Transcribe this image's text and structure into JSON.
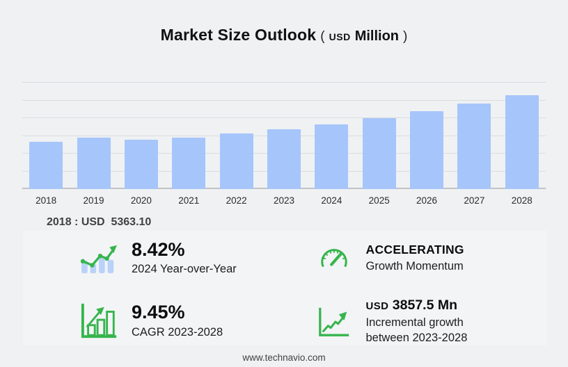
{
  "colors": {
    "page_bg": "#eff1f3",
    "panel_bg": "#f3f4f6",
    "bar_blue": "#a6c5fb",
    "icon_bar_blue": "#b9d2f9",
    "accent_green": "#36b54d",
    "gridline": "#dcdcdf",
    "axis_line": "#c3c3c6"
  },
  "header": {
    "title": "Market Size Outlook",
    "paren_open": "(",
    "currency": "USD",
    "unit": "Million",
    "paren_close": ")"
  },
  "annotation": {
    "text": "2018 : USD  5363.10"
  },
  "chart_data": {
    "type": "bar",
    "title": "Market Size Outlook (USD Million)",
    "unit": "USD Million",
    "categories": [
      "2018",
      "2019",
      "2020",
      "2021",
      "2022",
      "2023",
      "2024",
      "2025",
      "2026",
      "2027",
      "2028"
    ],
    "values": [
      5363.1,
      5840,
      5550,
      5840,
      6290,
      6760,
      7329,
      8030,
      8800,
      9665,
      10617.5
    ],
    "value_precision_note": "2018 labeled exactly 5363.10; later years estimated from bar heights consistent with 8.42% YoY 2024, 9.45% CAGR 2023-2028, USD 3857.5 Mn incremental growth 2023-2028",
    "xlabel": "",
    "ylabel": "",
    "ylim": [
      0,
      12000
    ],
    "grid_step": 2000,
    "grid": true,
    "legend": false,
    "bar_color": "#a6c5fb"
  },
  "stats": [
    {
      "icon": "bar-chart-trend-icon",
      "value": "8.42%",
      "label": "2024 Year-over-Year"
    },
    {
      "icon": "speedometer-icon",
      "value": "ACCELERATING",
      "label": "Growth Momentum"
    },
    {
      "icon": "bar-growth-outline-icon",
      "value": "9.45%",
      "label": "CAGR 2023-2028"
    },
    {
      "icon": "line-chart-up-icon",
      "value_prefix": "USD",
      "value": "3857.5 Mn",
      "label_line1": "Incremental growth",
      "label_line2": "between 2023-2028"
    }
  ],
  "footer": {
    "website": "www.technavio.com"
  }
}
